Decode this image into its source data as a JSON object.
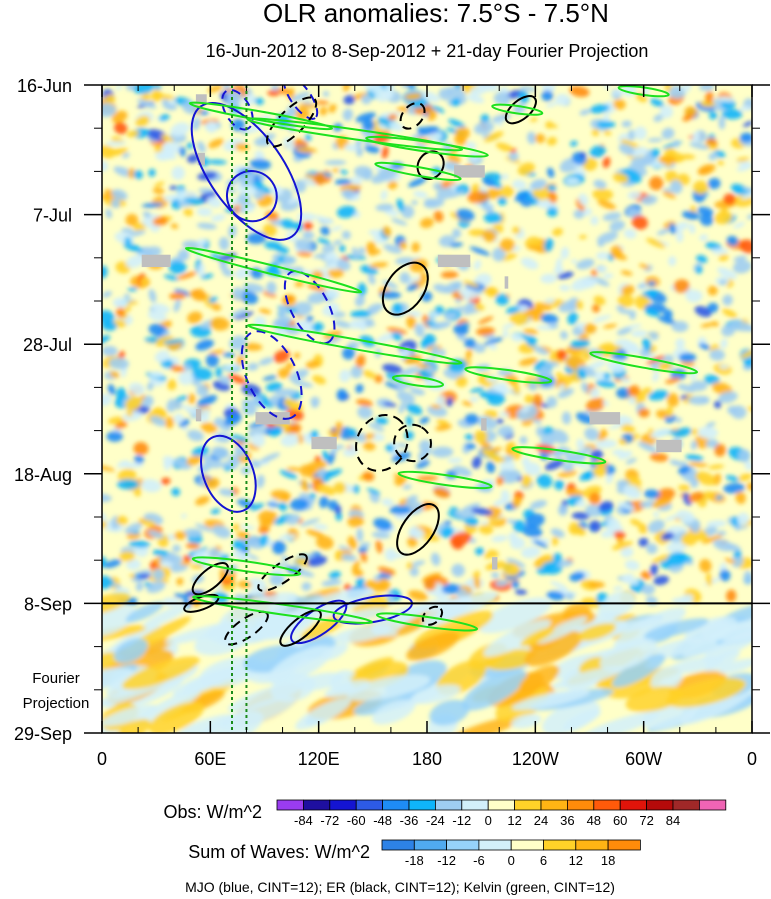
{
  "chart_data": {
    "type": "heatmap",
    "title": "OLR anomalies: 7.5°S - 7.5°N",
    "subtitle": "16-Jun-2012 to 8-Sep-2012 + 21-day Fourier Projection",
    "x_axis": {
      "ticks": [
        "0",
        "60E",
        "120E",
        "180",
        "120W",
        "60W",
        "0"
      ],
      "longitudes": [
        0,
        60,
        120,
        180,
        240,
        300,
        360
      ],
      "range": [
        0,
        360
      ]
    },
    "y_axis": {
      "ticks": [
        "16-Jun",
        "7-Jul",
        "28-Jul",
        "18-Aug",
        "8-Sep",
        "29-Sep"
      ],
      "day_offsets": [
        0,
        21,
        42,
        63,
        84,
        105
      ],
      "range_days": [
        0,
        105
      ],
      "direction": "time increases downward"
    },
    "observation_end_label": "8-Sep",
    "projection_label": [
      "Fourier",
      "Projection"
    ],
    "obs_colorbar": {
      "label": "Obs: W/m^2",
      "levels": [
        "-84",
        "-72",
        "-60",
        "-48",
        "-36",
        "-24",
        "-12",
        "0",
        "12",
        "24",
        "36",
        "48",
        "60",
        "72",
        "84"
      ],
      "colors": [
        "#9a3cf0",
        "#1e0fa0",
        "#1414d2",
        "#2d5ae6",
        "#1e8cf5",
        "#0fb4fa",
        "#9ecdf2",
        "#d2f0fa",
        "#ffffc8",
        "#ffd228",
        "#ffb414",
        "#ff8c0a",
        "#ff5a0a",
        "#e1140a",
        "#b40a0a",
        "#a02828",
        "#f064b4"
      ]
    },
    "waves_colorbar": {
      "label": "Sum of Waves: W/m^2",
      "levels": [
        "-18",
        "-12",
        "-6",
        "0",
        "6",
        "12",
        "18"
      ],
      "colors": [
        "#2d82e6",
        "#50aaf0",
        "#96d2fa",
        "#d2f0fa",
        "#ffffc8",
        "#ffd228",
        "#ffb414",
        "#ff8c0a"
      ]
    },
    "contour_overlays": [
      {
        "name": "MJO",
        "color": "#1414d2",
        "cint": 12
      },
      {
        "name": "ER",
        "color": "#000000",
        "cint": 12
      },
      {
        "name": "Kelvin",
        "color": "#1ee11e",
        "cint": 12
      }
    ],
    "footnote": "MJO (blue, CINT=12); ER (black, CINT=12); Kelvin (green, CINT=12)",
    "vertical_reference_lines_lon": [
      72,
      80
    ]
  }
}
